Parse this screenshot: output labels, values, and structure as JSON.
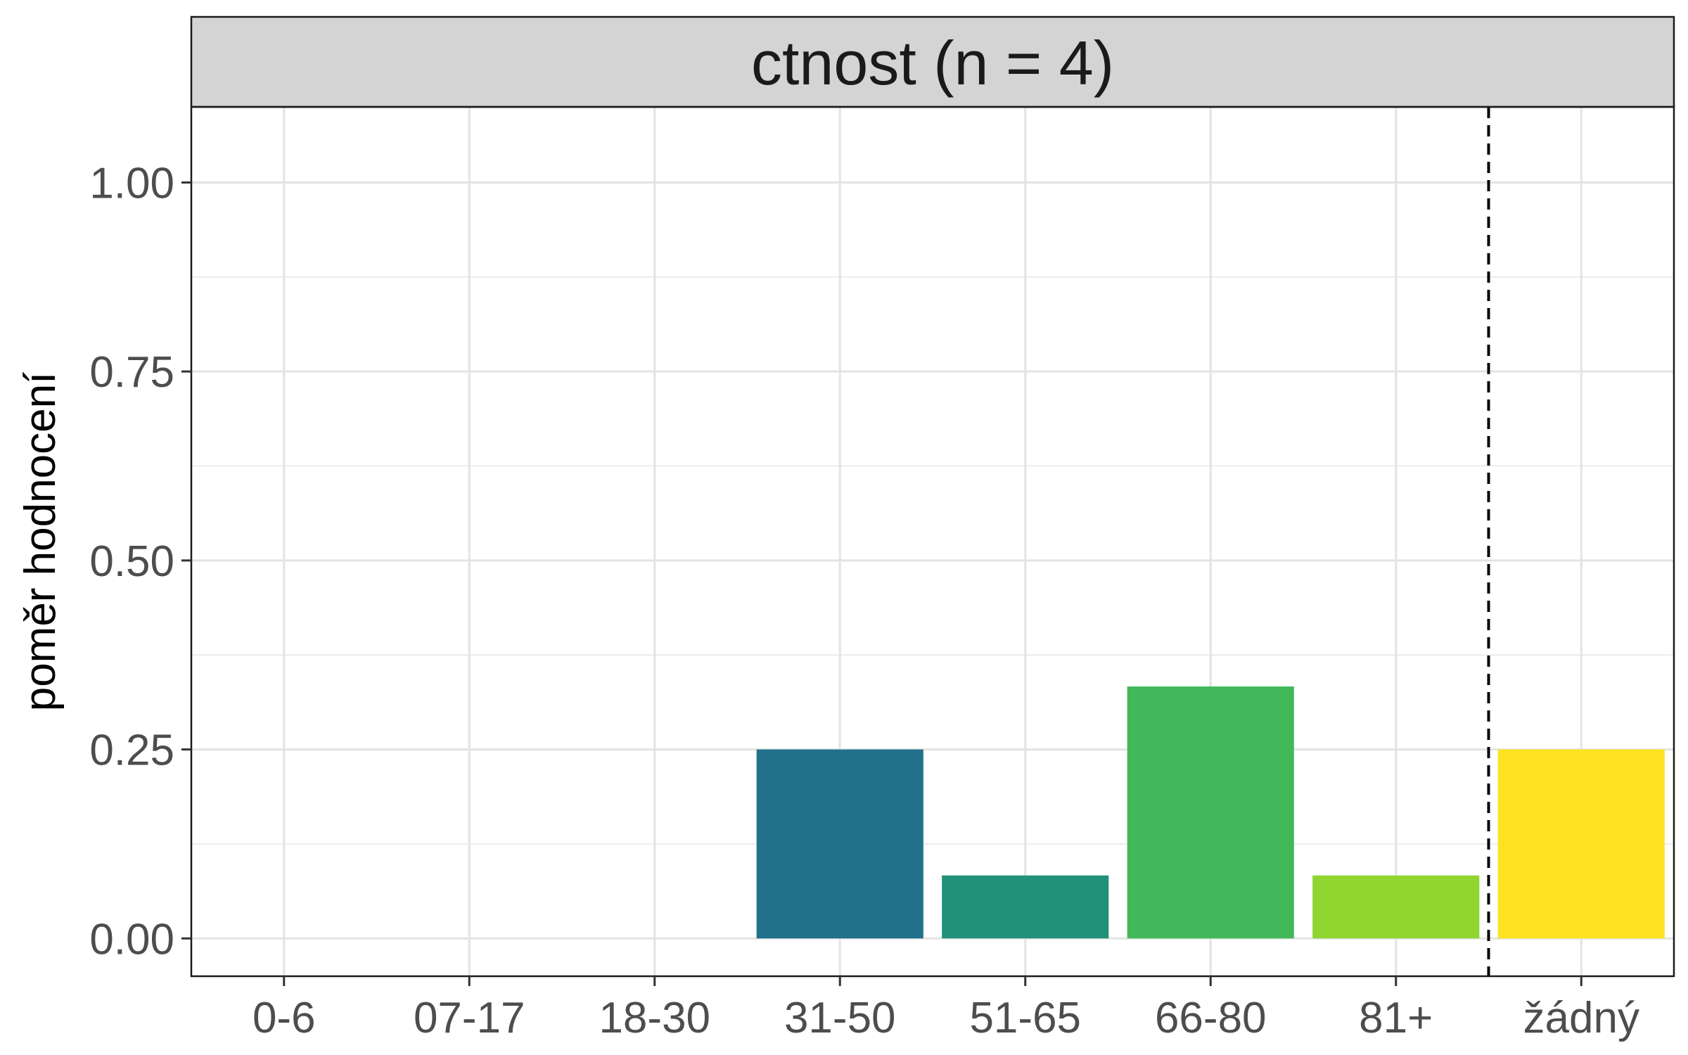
{
  "chart_data": {
    "type": "bar",
    "facet_title": "ctnost (n = 4)",
    "ylabel": "poměr hodnocení",
    "xlabel": "",
    "categories": [
      "0-6",
      "07-17",
      "18-30",
      "31-50",
      "51-65",
      "66-80",
      "81+",
      "žádný"
    ],
    "values": [
      0,
      0,
      0,
      0.25,
      0.0833,
      0.3333,
      0.0833,
      0.25
    ],
    "colors": [
      "#440154",
      "#46337E",
      "#365C8D",
      "#21718A",
      "#21917A",
      "#42B85A",
      "#90D530",
      "#FDE31F"
    ],
    "ylim": [
      -0.05,
      1.1
    ],
    "yticks": [
      {
        "value": 0.0,
        "label": "0.00"
      },
      {
        "value": 0.25,
        "label": "0.25"
      },
      {
        "value": 0.5,
        "label": "0.50"
      },
      {
        "value": 0.75,
        "label": "0.75"
      },
      {
        "value": 1.0,
        "label": "1.00"
      }
    ],
    "minor_yticks": [
      0.125,
      0.375,
      0.625,
      0.875
    ],
    "separator_after_category": "81+",
    "grid": true,
    "legend": "none"
  }
}
